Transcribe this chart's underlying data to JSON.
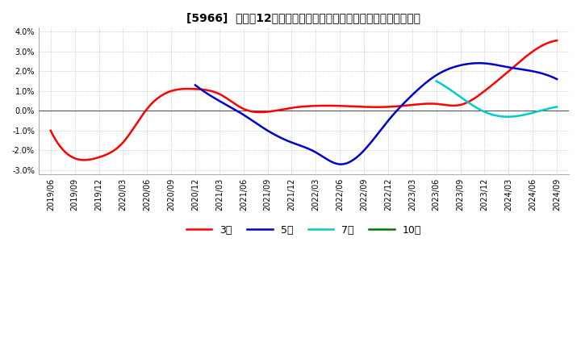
{
  "title": "[5966]  売上高12か月移動合計の対前年同期増減率の平均値の推移",
  "ylim": [
    -3.2,
    4.2
  ],
  "yticks": [
    -3.0,
    -2.0,
    -1.0,
    0.0,
    1.0,
    2.0,
    3.0,
    4.0
  ],
  "ytick_labels": [
    "-3.0%",
    "-2.0%",
    "-1.0%",
    "0.0%",
    "1.0%",
    "2.0%",
    "3.0%",
    "4.0%"
  ],
  "background_color": "#ffffff",
  "plot_bg_color": "#ffffff",
  "grid_color": "#aaaaaa",
  "legend_labels": [
    "3年",
    "5年",
    "7年",
    "10年"
  ],
  "legend_colors": [
    "#ff0000",
    "#0000cc",
    "#00cccc",
    "#007700"
  ],
  "x_labels": [
    "2019/06",
    "2019/09",
    "2019/12",
    "2020/03",
    "2020/06",
    "2020/09",
    "2020/12",
    "2021/03",
    "2021/06",
    "2021/09",
    "2021/12",
    "2022/03",
    "2022/06",
    "2022/09",
    "2022/12",
    "2023/03",
    "2023/06",
    "2023/09",
    "2023/12",
    "2024/03",
    "2024/06",
    "2024/09"
  ],
  "series_3y": [
    -1.0,
    -2.4,
    -2.35,
    -1.6,
    0.1,
    1.0,
    1.1,
    0.85,
    0.1,
    -0.05,
    0.15,
    0.25,
    0.25,
    0.2,
    0.2,
    0.3,
    0.35,
    0.3,
    1.0,
    2.0,
    3.0,
    3.55
  ],
  "series_5y": [
    null,
    null,
    null,
    null,
    null,
    null,
    1.3,
    0.5,
    -0.2,
    -1.0,
    -1.6,
    -2.1,
    -2.7,
    -2.0,
    -0.5,
    0.8,
    1.8,
    2.3,
    2.4,
    2.2,
    2.0,
    1.6
  ],
  "series_7y": [
    null,
    null,
    null,
    null,
    null,
    null,
    null,
    null,
    null,
    null,
    null,
    null,
    null,
    null,
    null,
    null,
    1.5,
    0.7,
    -0.05,
    -0.3,
    -0.1,
    0.2
  ],
  "series_10y": [
    null,
    null,
    null,
    null,
    null,
    null,
    null,
    null,
    null,
    null,
    null,
    null,
    null,
    null,
    null,
    null,
    null,
    null,
    null,
    null,
    null,
    null
  ]
}
